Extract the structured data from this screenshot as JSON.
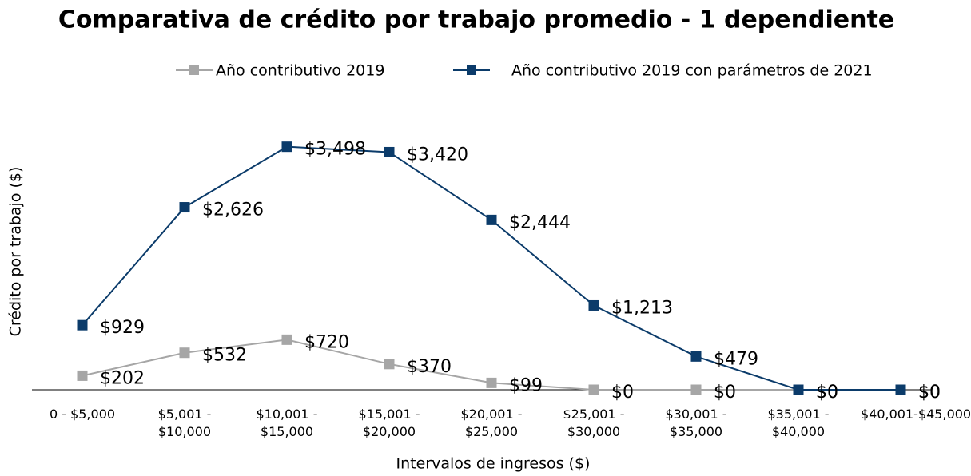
{
  "chart_data": {
    "type": "line",
    "title": "Comparativa de crédito por trabajo promedio - 1 dependiente",
    "x_label": "Intervalos de ingresos ($)",
    "y_label": "Crédito por trabajo ($)",
    "categories": [
      "0 - $5,000",
      "$5,001 - $10,000",
      "$10,001 - $15,000",
      "$15,001 - $20,000",
      "$20,001 - $25,000",
      "$25,001 - $30,000",
      "$30,001 - $35,000",
      "$35,001 - $40,000",
      "$40,001-$45,000"
    ],
    "ylim": [
      0,
      4000
    ],
    "legend": "top",
    "series": [
      {
        "name": "Año contributivo 2019",
        "color": "#a6a6a6",
        "values": [
          202,
          532,
          720,
          370,
          99,
          0,
          0,
          0,
          0
        ],
        "value_labels": [
          "$202",
          "$532",
          "$720",
          "$370",
          "$99",
          "$0",
          "$0",
          "$0",
          "$0"
        ]
      },
      {
        "name": "Año contributivo 2019 con parámetros de 2021",
        "color": "#0b3b6a",
        "values": [
          929,
          2626,
          3498,
          3420,
          2444,
          1213,
          479,
          0,
          0
        ],
        "value_labels": [
          "$929",
          "$2,626",
          "$3,498",
          "$3,420",
          "$2,444",
          "$1,213",
          "$479",
          "$0",
          "$0"
        ]
      }
    ]
  }
}
